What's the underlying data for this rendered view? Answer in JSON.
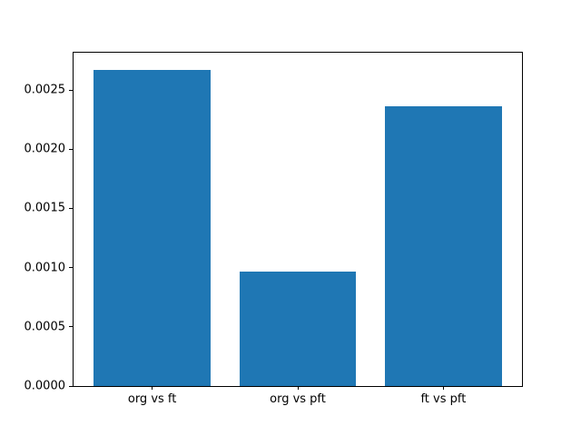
{
  "chart_data": {
    "type": "bar",
    "title": "",
    "xlabel": "",
    "ylabel": "",
    "categories": [
      "org vs ft",
      "org vs pft",
      "ft vs pft"
    ],
    "values": [
      0.00267,
      0.00097,
      0.00236
    ],
    "x_positions": [
      0,
      1,
      2
    ],
    "xlim": [
      -0.54,
      2.54
    ],
    "ylim": [
      0,
      0.002815
    ],
    "yticks": [
      0.0,
      0.0005,
      0.001,
      0.0015,
      0.002,
      0.0025
    ],
    "ytick_labels": [
      "0.0000",
      "0.0005",
      "0.0010",
      "0.0015",
      "0.0020",
      "0.0025"
    ],
    "bar_width": 0.8,
    "bar_color": "#1f77b4",
    "background_color": "#ffffff",
    "spine_color": "#000000",
    "grid": false,
    "legend": null
  }
}
